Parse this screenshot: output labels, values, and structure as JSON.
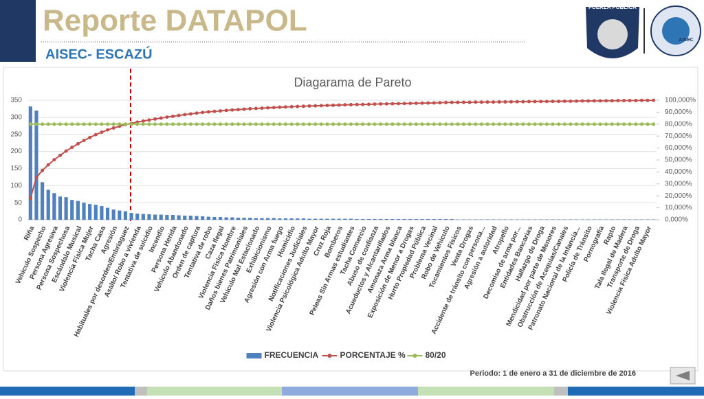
{
  "header": {
    "title": "Reporte DATAPOL",
    "subtitle": "AISEC- ESCAZÚ",
    "logo_text": "FUERZA PUBLICA",
    "logo2_text": "AISEC"
  },
  "footer": {
    "period": "Periodo: 1 de enero a 31 de diciembre de 2016"
  },
  "chart_data": {
    "type": "bar",
    "title": "Diagarama de Pareto",
    "categories": [
      "Riña",
      null,
      "Vehiculo Sospecho",
      null,
      "Persona Agresiva",
      null,
      "Persona Sospechosa",
      null,
      "Escándalo Musical",
      null,
      "Violencia Física Mujer",
      null,
      "Tacha Casa",
      null,
      "Agresión",
      null,
      "Habituales por desorden/Embriaguez",
      null,
      "Asalto/ Robo a vivienda",
      null,
      "Tentativa de suicidio",
      null,
      "Incendio",
      null,
      "Persona Herida",
      null,
      "Vehiculo Abandonado",
      null,
      "Orden de captura",
      null,
      "Tentativa de robo",
      null,
      "Caza Ilegal",
      null,
      "Violencia Física Hombre",
      null,
      "Daños bienes Patrimoniales",
      null,
      "Vehiculo Mal Estacionado",
      null,
      "Exhibicionismo",
      null,
      "Agresión con Arma fuego",
      null,
      "Homicidio",
      null,
      "Notificaciones Judiciales",
      null,
      "Violencia Psicológica Adulto Mayor",
      null,
      "Cruz Roja",
      null,
      "Bomberos",
      null,
      "Peleas Sin Armas estudiantes",
      null,
      "Tacha Comercio",
      null,
      "Abuso de confianza",
      null,
      "Acueductos y Alcantarillados",
      null,
      "Amenaza Arma blanca",
      null,
      "Exposición de Menor a Drogas",
      null,
      "Hurto Propiedad Pública",
      null,
      "Problema Vecinal",
      null,
      "Robo de Vehiculo",
      null,
      "Tocamientos Físicos",
      null,
      "Venta Drogas",
      null,
      "Accidente de tránsito con persona...",
      null,
      "Agresión a autoridad",
      null,
      "Atropello",
      null,
      "Decomiso de arma por...",
      null,
      "Entidades Bancarias",
      null,
      "Hallazgo de Droga",
      null,
      "Mendicidad por parte de Menores",
      null,
      "Obstrucción de Acequias/Canales",
      null,
      "Patronato Nacional de la Infancia...",
      null,
      "Policía de Tránsito",
      null,
      "Pornografía",
      null,
      "Rapto",
      null,
      "Tala Ilegal de Madera",
      null,
      "Transporte de Droga",
      null,
      "Violencia Física Adulto Mayor",
      null
    ],
    "series": [
      {
        "name": "FRECUENCIA",
        "type": "bar",
        "color": "#4f81bd",
        "values": [
          332,
          320,
          110,
          88,
          78,
          68,
          66,
          58,
          55,
          50,
          46,
          44,
          40,
          35,
          30,
          27,
          25,
          20,
          18,
          17,
          16,
          15,
          15,
          14,
          14,
          13,
          12,
          12,
          11,
          10,
          9,
          8,
          8,
          7,
          7,
          6,
          6,
          6,
          5,
          5,
          5,
          5,
          4,
          4,
          4,
          4,
          4,
          3,
          3,
          3,
          3,
          3,
          3,
          3,
          3,
          2,
          2,
          2,
          2,
          2,
          2,
          2,
          2,
          2,
          2,
          2,
          2,
          2,
          2,
          2,
          2,
          2,
          1,
          1,
          1,
          1,
          1,
          1,
          1,
          1,
          1,
          1,
          1,
          1,
          1,
          1,
          1,
          1,
          1,
          1,
          1,
          1,
          1,
          1,
          1,
          1,
          1,
          1,
          1,
          1,
          1,
          1,
          1,
          1,
          1,
          1
        ]
      },
      {
        "name": "PORCENTAJE %",
        "type": "line",
        "axis": "y2",
        "color": "#c0504d",
        "values": [
          18.0,
          35.3,
          41.2,
          46.0,
          50.2,
          53.9,
          57.5,
          60.6,
          63.6,
          66.3,
          68.8,
          71.2,
          73.3,
          75.2,
          76.8,
          78.3,
          79.7,
          80.7,
          81.7,
          82.6,
          83.5,
          84.3,
          85.1,
          85.9,
          86.6,
          87.3,
          88.0,
          88.6,
          89.2,
          89.8,
          90.3,
          90.7,
          91.1,
          91.5,
          91.9,
          92.2,
          92.5,
          92.9,
          93.1,
          93.4,
          93.7,
          93.9,
          94.2,
          94.4,
          94.6,
          94.8,
          95.0,
          95.2,
          95.3,
          95.5,
          95.7,
          95.8,
          96.0,
          96.2,
          96.3,
          96.4,
          96.5,
          96.6,
          96.8,
          96.9,
          97.0,
          97.1,
          97.2,
          97.3,
          97.4,
          97.5,
          97.6,
          97.7,
          97.8,
          97.9,
          98.1,
          98.2,
          98.2,
          98.3,
          98.3,
          98.4,
          98.4,
          98.5,
          98.5,
          98.6,
          98.6,
          98.7,
          98.8,
          98.8,
          98.9,
          98.9,
          99.0,
          99.0,
          99.1,
          99.1,
          99.2,
          99.2,
          99.3,
          99.4,
          99.4,
          99.5,
          99.5,
          99.6,
          99.6,
          99.7,
          99.7,
          99.8,
          99.8,
          99.9,
          99.9,
          100.0
        ]
      },
      {
        "name": "80/20",
        "type": "line",
        "axis": "y2",
        "color": "#9bbb59",
        "values": [
          80,
          80,
          80,
          80,
          80,
          80,
          80,
          80,
          80,
          80,
          80,
          80,
          80,
          80,
          80,
          80,
          80,
          80,
          80,
          80,
          80,
          80,
          80,
          80,
          80,
          80,
          80,
          80,
          80,
          80,
          80,
          80,
          80,
          80,
          80,
          80,
          80,
          80,
          80,
          80,
          80,
          80,
          80,
          80,
          80,
          80,
          80,
          80,
          80,
          80,
          80,
          80,
          80,
          80,
          80,
          80,
          80,
          80,
          80,
          80,
          80,
          80,
          80,
          80,
          80,
          80,
          80,
          80,
          80,
          80,
          80,
          80,
          80,
          80,
          80,
          80,
          80,
          80,
          80,
          80,
          80,
          80,
          80,
          80,
          80,
          80,
          80,
          80,
          80,
          80,
          80,
          80,
          80,
          80,
          80,
          80,
          80,
          80,
          80,
          80,
          80,
          80,
          80,
          80,
          80,
          80
        ]
      }
    ],
    "ylim": [
      0,
      350
    ],
    "yticks": [
      0,
      50,
      100,
      150,
      200,
      250,
      300,
      350
    ],
    "y2lim": [
      0,
      100
    ],
    "y2ticks": [
      {
        "value": 0,
        "label": "0,000%"
      },
      {
        "value": 10,
        "label": "10,000%"
      },
      {
        "value": 20,
        "label": "20,000%"
      },
      {
        "value": 30,
        "label": "30,000%"
      },
      {
        "value": 40,
        "label": "40,000%"
      },
      {
        "value": 50,
        "label": "50,000%"
      },
      {
        "value": 60,
        "label": "60,000%"
      },
      {
        "value": 70,
        "label": "70,000%"
      },
      {
        "value": 80,
        "label": "80,000%"
      },
      {
        "value": 90,
        "label": "90,000%"
      },
      {
        "value": 100,
        "label": "100,000%"
      }
    ],
    "grid": true,
    "legend": "bottom"
  }
}
